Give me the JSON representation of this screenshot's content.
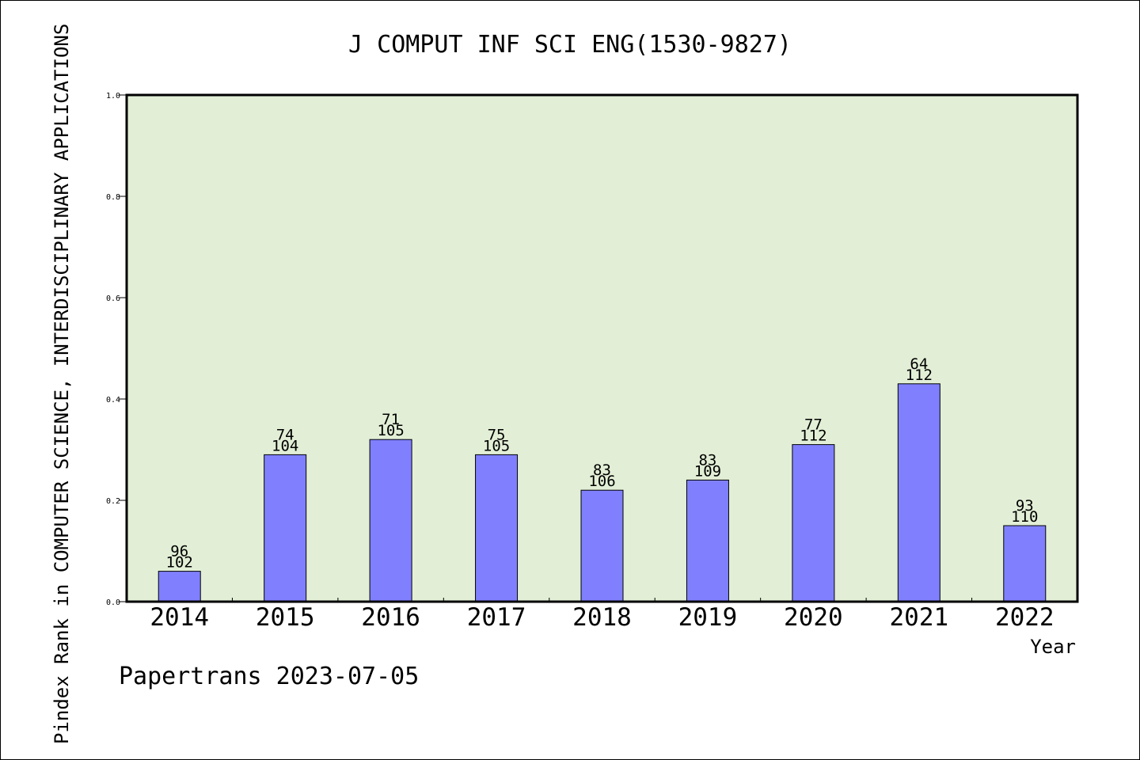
{
  "chart_data": {
    "type": "bar",
    "title": "J COMPUT INF SCI ENG(1530-9827)",
    "xlabel": "Year",
    "ylabel": "Pindex Rank in COMPUTER SCIENCE, INTERDISCIPLINARY APPLICATIONS",
    "footer": "Papertrans 2023-07-05",
    "categories": [
      "2014",
      "2015",
      "2016",
      "2017",
      "2018",
      "2019",
      "2020",
      "2021",
      "2022"
    ],
    "values": [
      0.06,
      0.29,
      0.32,
      0.29,
      0.22,
      0.24,
      0.31,
      0.43,
      0.15
    ],
    "rank": [
      "96",
      "74",
      "71",
      "75",
      "83",
      "83",
      "77",
      "64",
      "93"
    ],
    "total": [
      "102",
      "104",
      "105",
      "105",
      "106",
      "109",
      "112",
      "112",
      "110"
    ],
    "ylim": [
      0,
      1.0
    ],
    "yticks": [
      "0.0",
      "0.2",
      "0.4",
      "0.6",
      "0.8",
      "1.0"
    ],
    "grid": false,
    "legend": "none",
    "colors": {
      "plot_background": "#e2efd6",
      "bar_fill": "#8080ff",
      "bar_stroke": "#000000",
      "axis": "#000000"
    }
  }
}
